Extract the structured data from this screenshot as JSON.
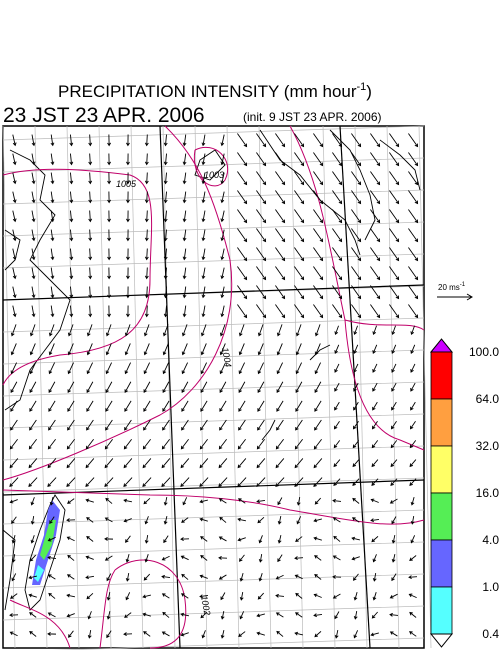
{
  "title": {
    "text": "PRECIPITATION INTENSITY (mm hour",
    "superscript": "-1",
    "close": ")"
  },
  "valid_time": "23 JST 23 APR. 2006",
  "init_time": "(init. 9 JST 23 APR. 2006)",
  "map": {
    "isobar_labels": [
      "1005",
      "1003",
      "1004",
      "1002"
    ]
  },
  "vector_reference": {
    "text": "20 ms",
    "superscript": "-1"
  },
  "colorbar": {
    "labels": [
      "100.0",
      "64.0",
      "32.0",
      "16.0",
      "4.0",
      "1.0",
      "0.4"
    ],
    "colors": [
      "#cc00ff",
      "#ff0000",
      "#ff9f40",
      "#ffff66",
      "#55ee55",
      "#6666ff",
      "#55ffff",
      "#ffffff"
    ]
  }
}
